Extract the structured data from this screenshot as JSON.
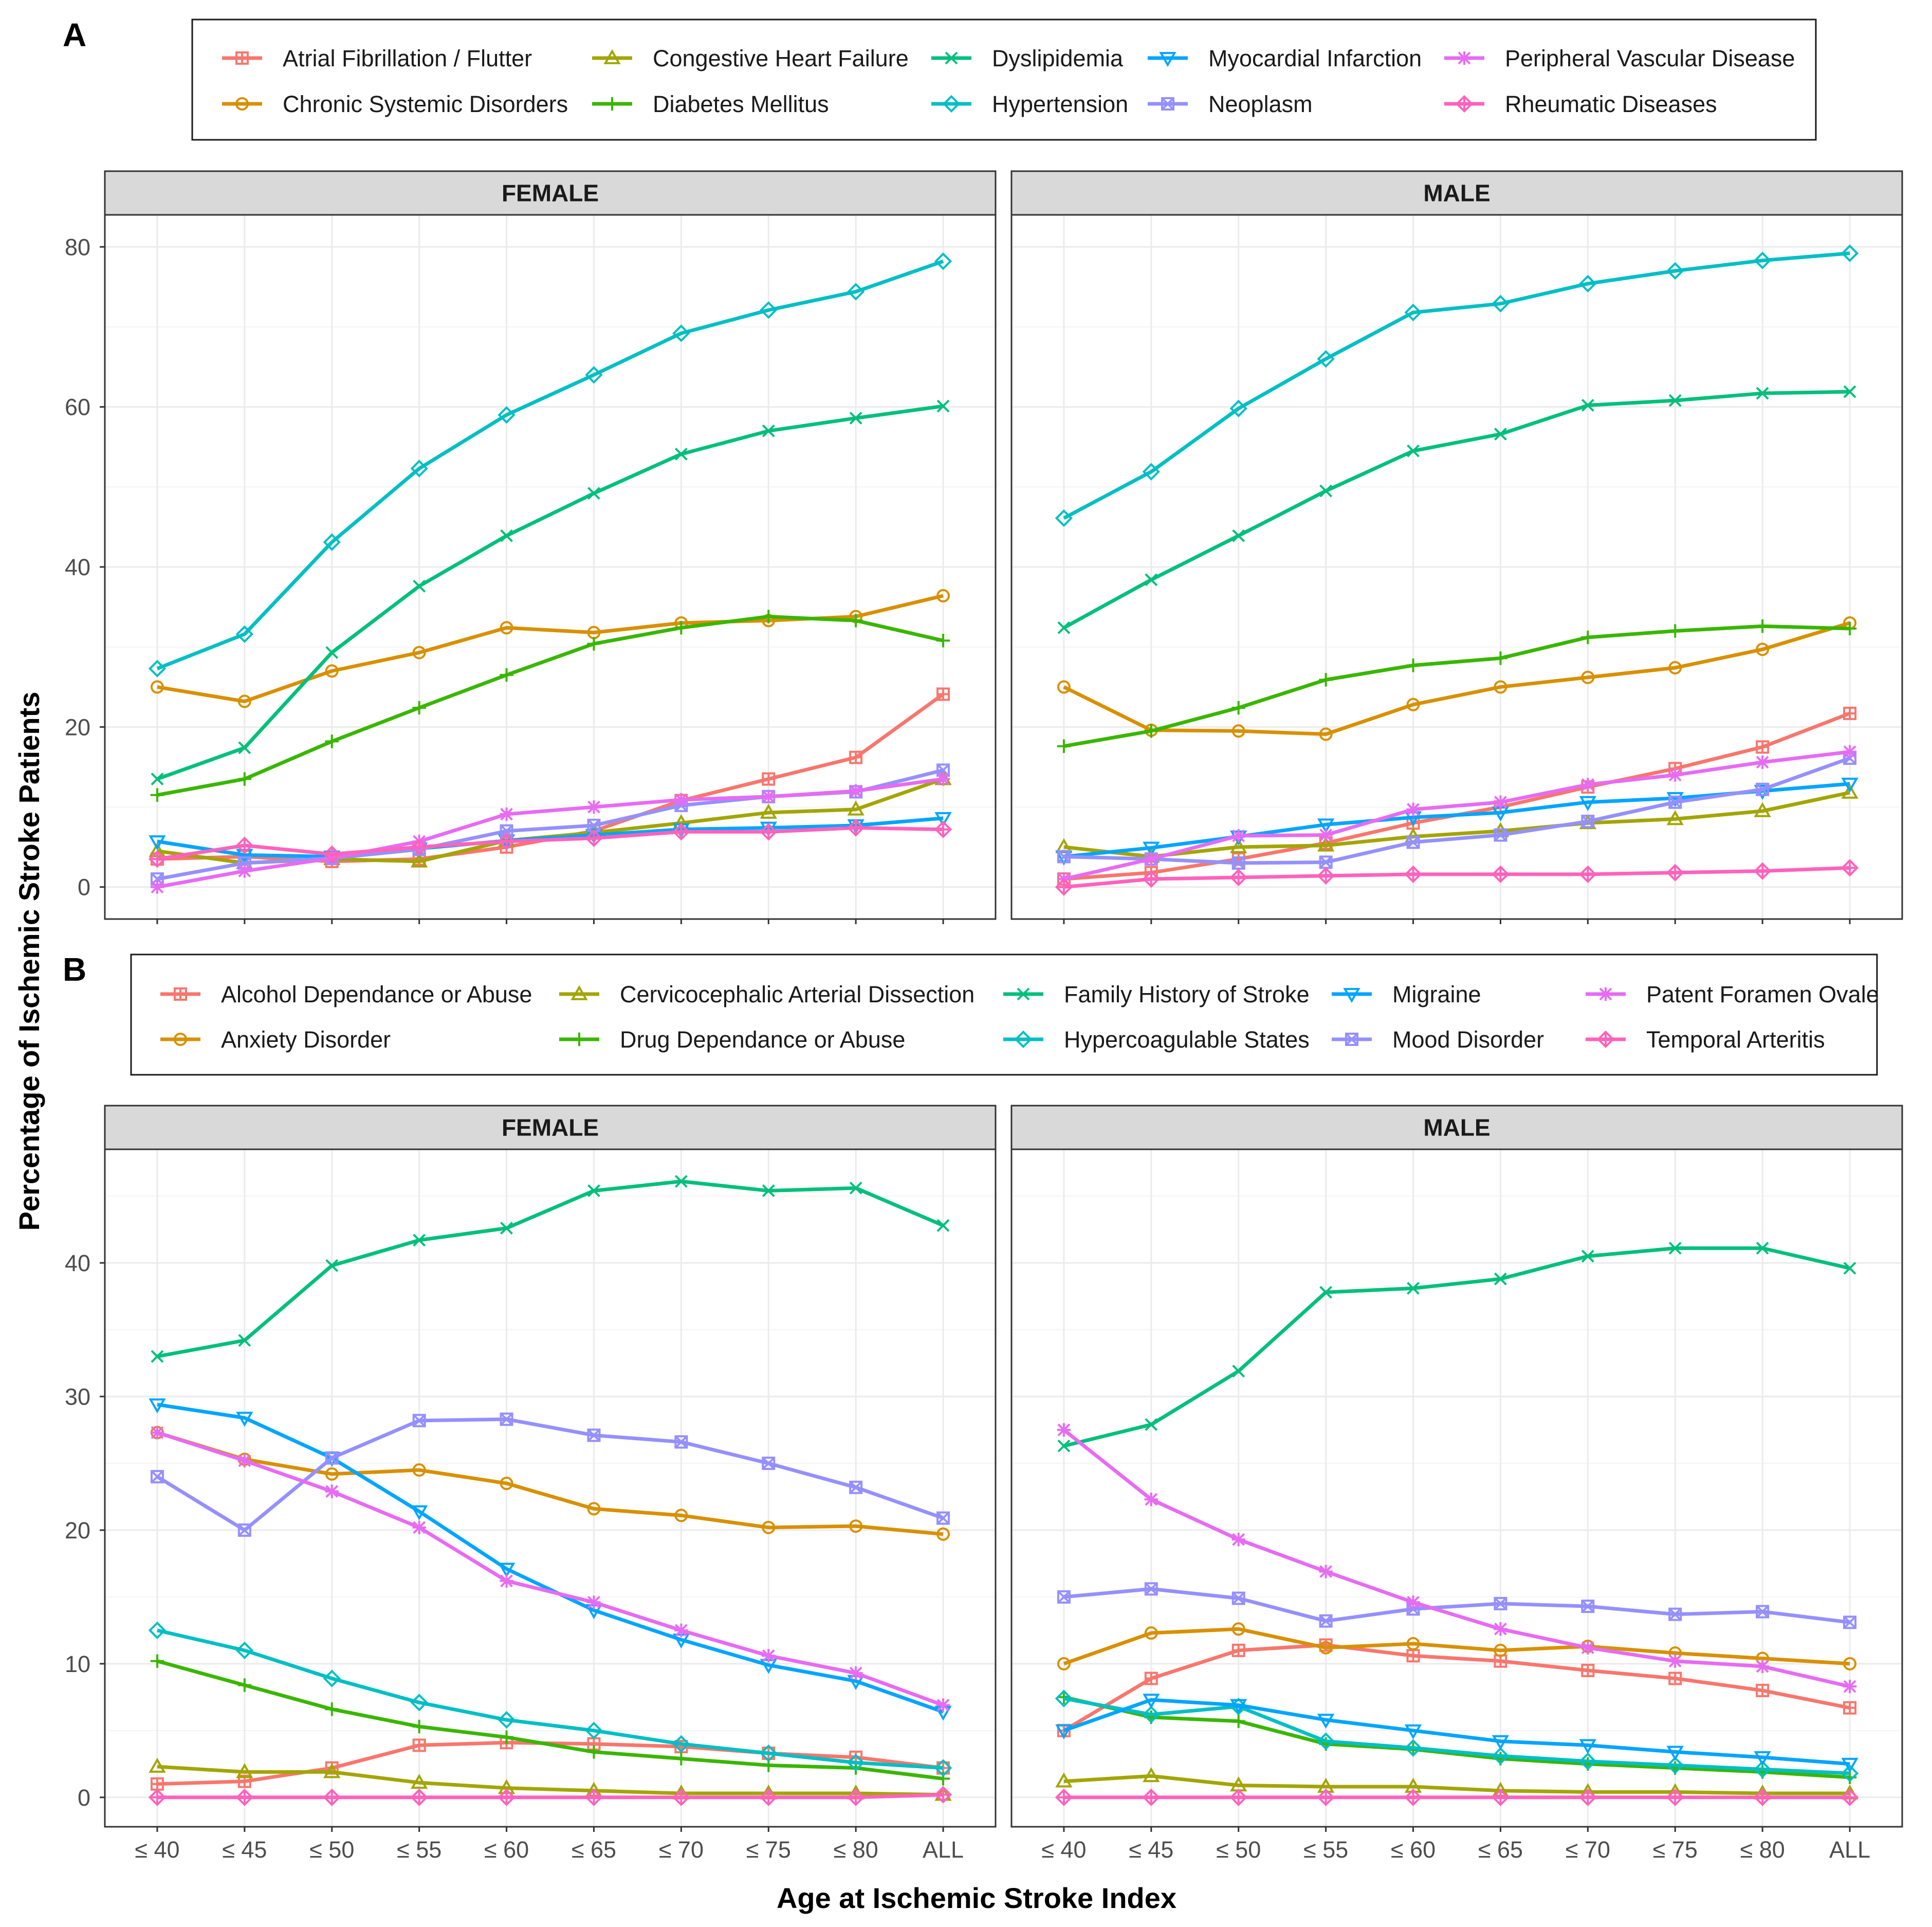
{
  "figure": {
    "y_axis_title": "Percentage of Ischemic Stroke Patients",
    "x_axis_title": "Age at Ischemic Stroke Index"
  },
  "chart_data": [
    {
      "type": "line",
      "panel": "A",
      "categories": [
        "≤ 40",
        "≤ 45",
        "≤ 50",
        "≤ 55",
        "≤ 60",
        "≤ 65",
        "≤ 70",
        "≤ 75",
        "≤ 80",
        "ALL"
      ],
      "facets": [
        "FEMALE",
        "MALE"
      ],
      "xlabel": "Age at Ischemic Stroke Index",
      "ylabel": "Percentage of Ischemic Stroke Patients",
      "ylim": [
        -4,
        84
      ],
      "yticks": [
        0,
        20,
        40,
        60,
        80
      ],
      "legend_position": "top",
      "series": [
        {
          "name": "Atrial Fibrillation / Flutter",
          "color": "#F8766D",
          "shape": "square-cross",
          "FEMALE": [
            3.5,
            3.8,
            3.2,
            3.5,
            5.0,
            7.0,
            10.8,
            13.5,
            16.2,
            24.1
          ],
          "MALE": [
            1.0,
            1.8,
            3.5,
            5.5,
            8.0,
            10.0,
            12.5,
            14.8,
            17.5,
            21.7
          ]
        },
        {
          "name": "Chronic Systemic Disorders",
          "color": "#D89000",
          "shape": "circle",
          "FEMALE": [
            25.0,
            23.2,
            27.0,
            29.3,
            32.4,
            31.8,
            33.0,
            33.3,
            33.8,
            36.4
          ],
          "MALE": [
            25.0,
            19.6,
            19.5,
            19.1,
            22.8,
            25.0,
            26.2,
            27.4,
            29.7,
            33.0
          ]
        },
        {
          "name": "Congestive Heart Failure",
          "color": "#A3A500",
          "shape": "triangle",
          "FEMALE": [
            4.5,
            3.0,
            3.5,
            3.2,
            5.8,
            6.8,
            8.0,
            9.3,
            9.7,
            13.5
          ],
          "MALE": [
            5.0,
            3.8,
            5.0,
            5.2,
            6.3,
            7.0,
            8.0,
            8.5,
            9.5,
            11.8
          ]
        },
        {
          "name": "Diabetes Mellitus",
          "color": "#39B600",
          "shape": "plus",
          "FEMALE": [
            11.5,
            13.5,
            18.2,
            22.4,
            26.5,
            30.4,
            32.4,
            33.8,
            33.3,
            30.8
          ],
          "MALE": [
            17.6,
            19.5,
            22.4,
            25.9,
            27.7,
            28.6,
            31.2,
            32.0,
            32.6,
            32.3
          ]
        },
        {
          "name": "Dyslipidemia",
          "color": "#00BF7D",
          "shape": "x",
          "FEMALE": [
            13.5,
            17.4,
            29.3,
            37.6,
            43.9,
            49.2,
            54.1,
            57.0,
            58.6,
            60.1
          ],
          "MALE": [
            32.4,
            38.4,
            43.9,
            49.5,
            54.5,
            56.6,
            60.2,
            60.8,
            61.7,
            61.9
          ]
        },
        {
          "name": "Hypertension",
          "color": "#00BFC4",
          "shape": "diamond",
          "FEMALE": [
            27.3,
            31.6,
            43.1,
            52.3,
            59.0,
            64.0,
            69.2,
            72.1,
            74.4,
            78.2
          ],
          "MALE": [
            46.1,
            51.9,
            59.8,
            66.0,
            71.8,
            72.9,
            75.4,
            77.0,
            78.3,
            79.2
          ]
        },
        {
          "name": "Myocardial Infarction",
          "color": "#00A5FF",
          "shape": "triangle-down",
          "FEMALE": [
            5.7,
            4.0,
            3.8,
            4.8,
            5.8,
            6.5,
            7.2,
            7.4,
            7.7,
            8.6
          ],
          "MALE": [
            3.8,
            4.9,
            6.3,
            7.8,
            8.7,
            9.3,
            10.6,
            11.1,
            12.0,
            12.9
          ]
        },
        {
          "name": "Neoplasm",
          "color": "#9590FF",
          "shape": "square-x",
          "FEMALE": [
            1.0,
            3.0,
            3.6,
            4.7,
            7.0,
            7.7,
            10.2,
            11.3,
            11.9,
            14.6
          ],
          "MALE": [
            3.8,
            3.5,
            3.0,
            3.1,
            5.6,
            6.5,
            8.2,
            10.6,
            12.2,
            16.1
          ]
        },
        {
          "name": "Peripheral Vascular Disease",
          "color": "#E76BF3",
          "shape": "star",
          "FEMALE": [
            0.0,
            2.0,
            3.6,
            5.7,
            9.1,
            10.0,
            10.9,
            11.3,
            12.0,
            13.5
          ],
          "MALE": [
            1.0,
            3.5,
            6.4,
            6.5,
            9.7,
            10.6,
            12.8,
            14.0,
            15.6,
            16.9
          ]
        },
        {
          "name": "Rheumatic Diseases",
          "color": "#FF62BC",
          "shape": "diamond-plus",
          "FEMALE": [
            3.5,
            5.2,
            4.1,
            5.0,
            5.7,
            6.1,
            6.9,
            6.9,
            7.4,
            7.2
          ],
          "MALE": [
            0.0,
            1.0,
            1.2,
            1.4,
            1.6,
            1.6,
            1.6,
            1.8,
            2.0,
            2.4
          ]
        }
      ]
    },
    {
      "type": "line",
      "panel": "B",
      "categories": [
        "≤ 40",
        "≤ 45",
        "≤ 50",
        "≤ 55",
        "≤ 60",
        "≤ 65",
        "≤ 70",
        "≤ 75",
        "≤ 80",
        "ALL"
      ],
      "facets": [
        "FEMALE",
        "MALE"
      ],
      "xlabel": "Age at Ischemic Stroke Index",
      "ylabel": "Percentage of Ischemic Stroke Patients",
      "ylim": [
        -2.2,
        48.5
      ],
      "yticks": [
        0,
        10,
        20,
        30,
        40
      ],
      "legend_position": "top",
      "series": [
        {
          "name": "Alcohol Dependance or Abuse",
          "color": "#F8766D",
          "shape": "square-cross",
          "FEMALE": [
            1.0,
            1.2,
            2.2,
            3.9,
            4.1,
            4.0,
            3.8,
            3.3,
            3.0,
            2.2
          ],
          "MALE": [
            5.0,
            8.9,
            11.0,
            11.4,
            10.6,
            10.2,
            9.5,
            8.9,
            8.0,
            6.7
          ]
        },
        {
          "name": "Anxiety Disorder",
          "color": "#D89000",
          "shape": "circle",
          "FEMALE": [
            27.3,
            25.3,
            24.2,
            24.5,
            23.5,
            21.6,
            21.1,
            20.2,
            20.3,
            19.7
          ],
          "MALE": [
            10.0,
            12.3,
            12.6,
            11.2,
            11.5,
            11.0,
            11.3,
            10.8,
            10.4,
            10.0
          ]
        },
        {
          "name": "Cervicocephalic Arterial Dissection",
          "color": "#A3A500",
          "shape": "triangle",
          "FEMALE": [
            2.3,
            1.9,
            1.9,
            1.1,
            0.7,
            0.5,
            0.3,
            0.3,
            0.3,
            0.2
          ],
          "MALE": [
            1.2,
            1.6,
            0.9,
            0.8,
            0.8,
            0.5,
            0.4,
            0.4,
            0.3,
            0.3
          ]
        },
        {
          "name": "Drug Dependance or Abuse",
          "color": "#39B600",
          "shape": "plus",
          "FEMALE": [
            10.2,
            8.4,
            6.6,
            5.3,
            4.5,
            3.4,
            2.9,
            2.4,
            2.2,
            1.4
          ],
          "MALE": [
            7.5,
            6.0,
            5.7,
            4.0,
            3.6,
            2.9,
            2.5,
            2.2,
            1.9,
            1.5
          ]
        },
        {
          "name": "Family History of Stroke",
          "color": "#00BF7D",
          "shape": "x",
          "FEMALE": [
            33.0,
            34.2,
            39.8,
            41.7,
            42.6,
            45.4,
            46.1,
            45.4,
            45.6,
            42.8
          ],
          "MALE": [
            26.3,
            27.9,
            31.9,
            37.8,
            38.1,
            38.8,
            40.5,
            41.1,
            41.1,
            39.6
          ]
        },
        {
          "name": "Hypercoagulable States",
          "color": "#00BFC4",
          "shape": "diamond",
          "FEMALE": [
            12.5,
            11.0,
            8.9,
            7.1,
            5.8,
            5.0,
            4.0,
            3.3,
            2.6,
            2.2
          ],
          "MALE": [
            7.4,
            6.2,
            6.8,
            4.2,
            3.7,
            3.1,
            2.7,
            2.4,
            2.1,
            1.8
          ]
        },
        {
          "name": "Migraine",
          "color": "#00A5FF",
          "shape": "triangle-down",
          "FEMALE": [
            29.4,
            28.4,
            25.4,
            21.4,
            17.1,
            14.0,
            11.8,
            9.9,
            8.7,
            6.4
          ],
          "MALE": [
            5.0,
            7.3,
            6.9,
            5.8,
            5.0,
            4.2,
            3.9,
            3.4,
            3.0,
            2.5
          ]
        },
        {
          "name": "Mood Disorder",
          "color": "#9590FF",
          "shape": "square-x",
          "FEMALE": [
            24.0,
            20.0,
            25.4,
            28.2,
            28.3,
            27.1,
            26.6,
            25.0,
            23.2,
            20.9
          ],
          "MALE": [
            15.0,
            15.6,
            14.9,
            13.2,
            14.1,
            14.5,
            14.3,
            13.7,
            13.9,
            13.1
          ]
        },
        {
          "name": "Patent Foramen Ovale",
          "color": "#E76BF3",
          "shape": "star",
          "FEMALE": [
            27.3,
            25.2,
            22.9,
            20.2,
            16.2,
            14.6,
            12.5,
            10.6,
            9.3,
            6.9
          ],
          "MALE": [
            27.5,
            22.3,
            19.3,
            16.9,
            14.6,
            12.6,
            11.2,
            10.2,
            9.8,
            8.3
          ]
        },
        {
          "name": "Temporal Arteritis",
          "color": "#FF62BC",
          "shape": "diamond-plus",
          "FEMALE": [
            0.0,
            0.0,
            0.0,
            0.0,
            0.0,
            0.0,
            0.0,
            0.0,
            0.0,
            0.2
          ],
          "MALE": [
            0.0,
            0.0,
            0.0,
            0.0,
            0.0,
            0.0,
            0.0,
            0.0,
            0.0,
            0.0
          ]
        }
      ]
    }
  ]
}
